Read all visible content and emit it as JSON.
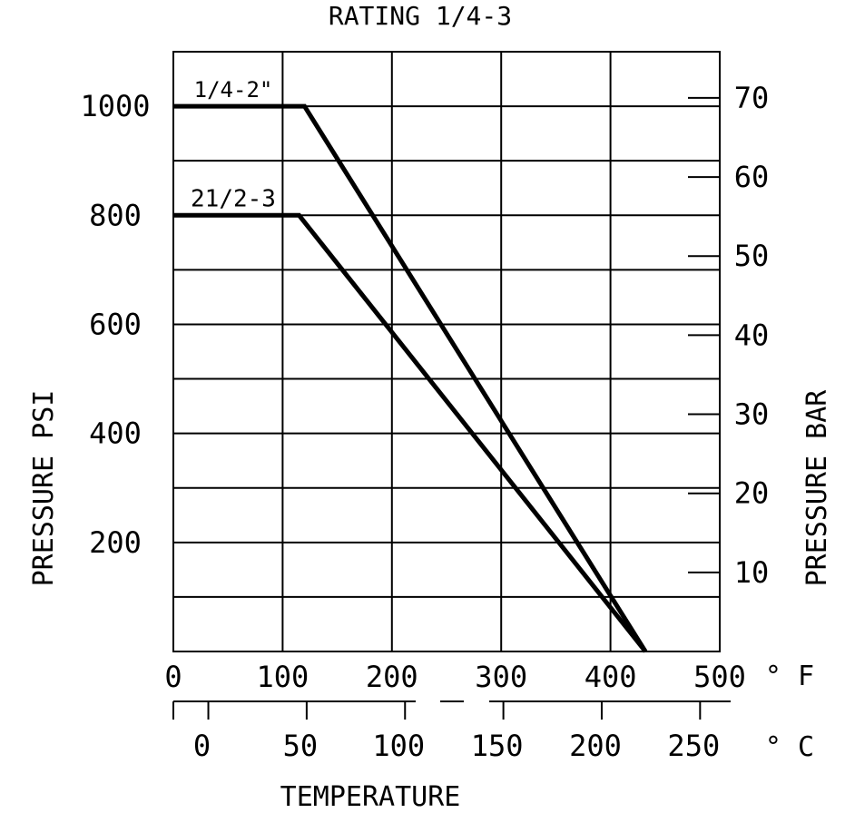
{
  "chart_data": {
    "type": "line",
    "title": "RATING 1/4-3",
    "ylabel_left": "PRESSURE PSI",
    "ylabel_right": "PRESSURE BAR",
    "xlabel": "TEMPERATURE",
    "x_unit_top": "° F",
    "x_unit_bottom": "° C",
    "xlim": [
      0,
      500
    ],
    "ylim": [
      0,
      1100
    ],
    "grid": true,
    "x_ticks_f": [
      0,
      100,
      200,
      300,
      400,
      500
    ],
    "x_ticks_c": [
      0,
      50,
      100,
      150,
      200,
      250
    ],
    "y_ticks_psi": [
      200,
      400,
      600,
      800,
      1000
    ],
    "y_ticks_bar": [
      10,
      20,
      30,
      40,
      50,
      60,
      70
    ],
    "series": [
      {
        "name": "1/4-2\"",
        "x": [
          0,
          120,
          432
        ],
        "y": [
          1000,
          1000,
          0
        ]
      },
      {
        "name": "21/2-3",
        "x": [
          0,
          115,
          432
        ],
        "y": [
          800,
          800,
          0
        ]
      }
    ]
  }
}
